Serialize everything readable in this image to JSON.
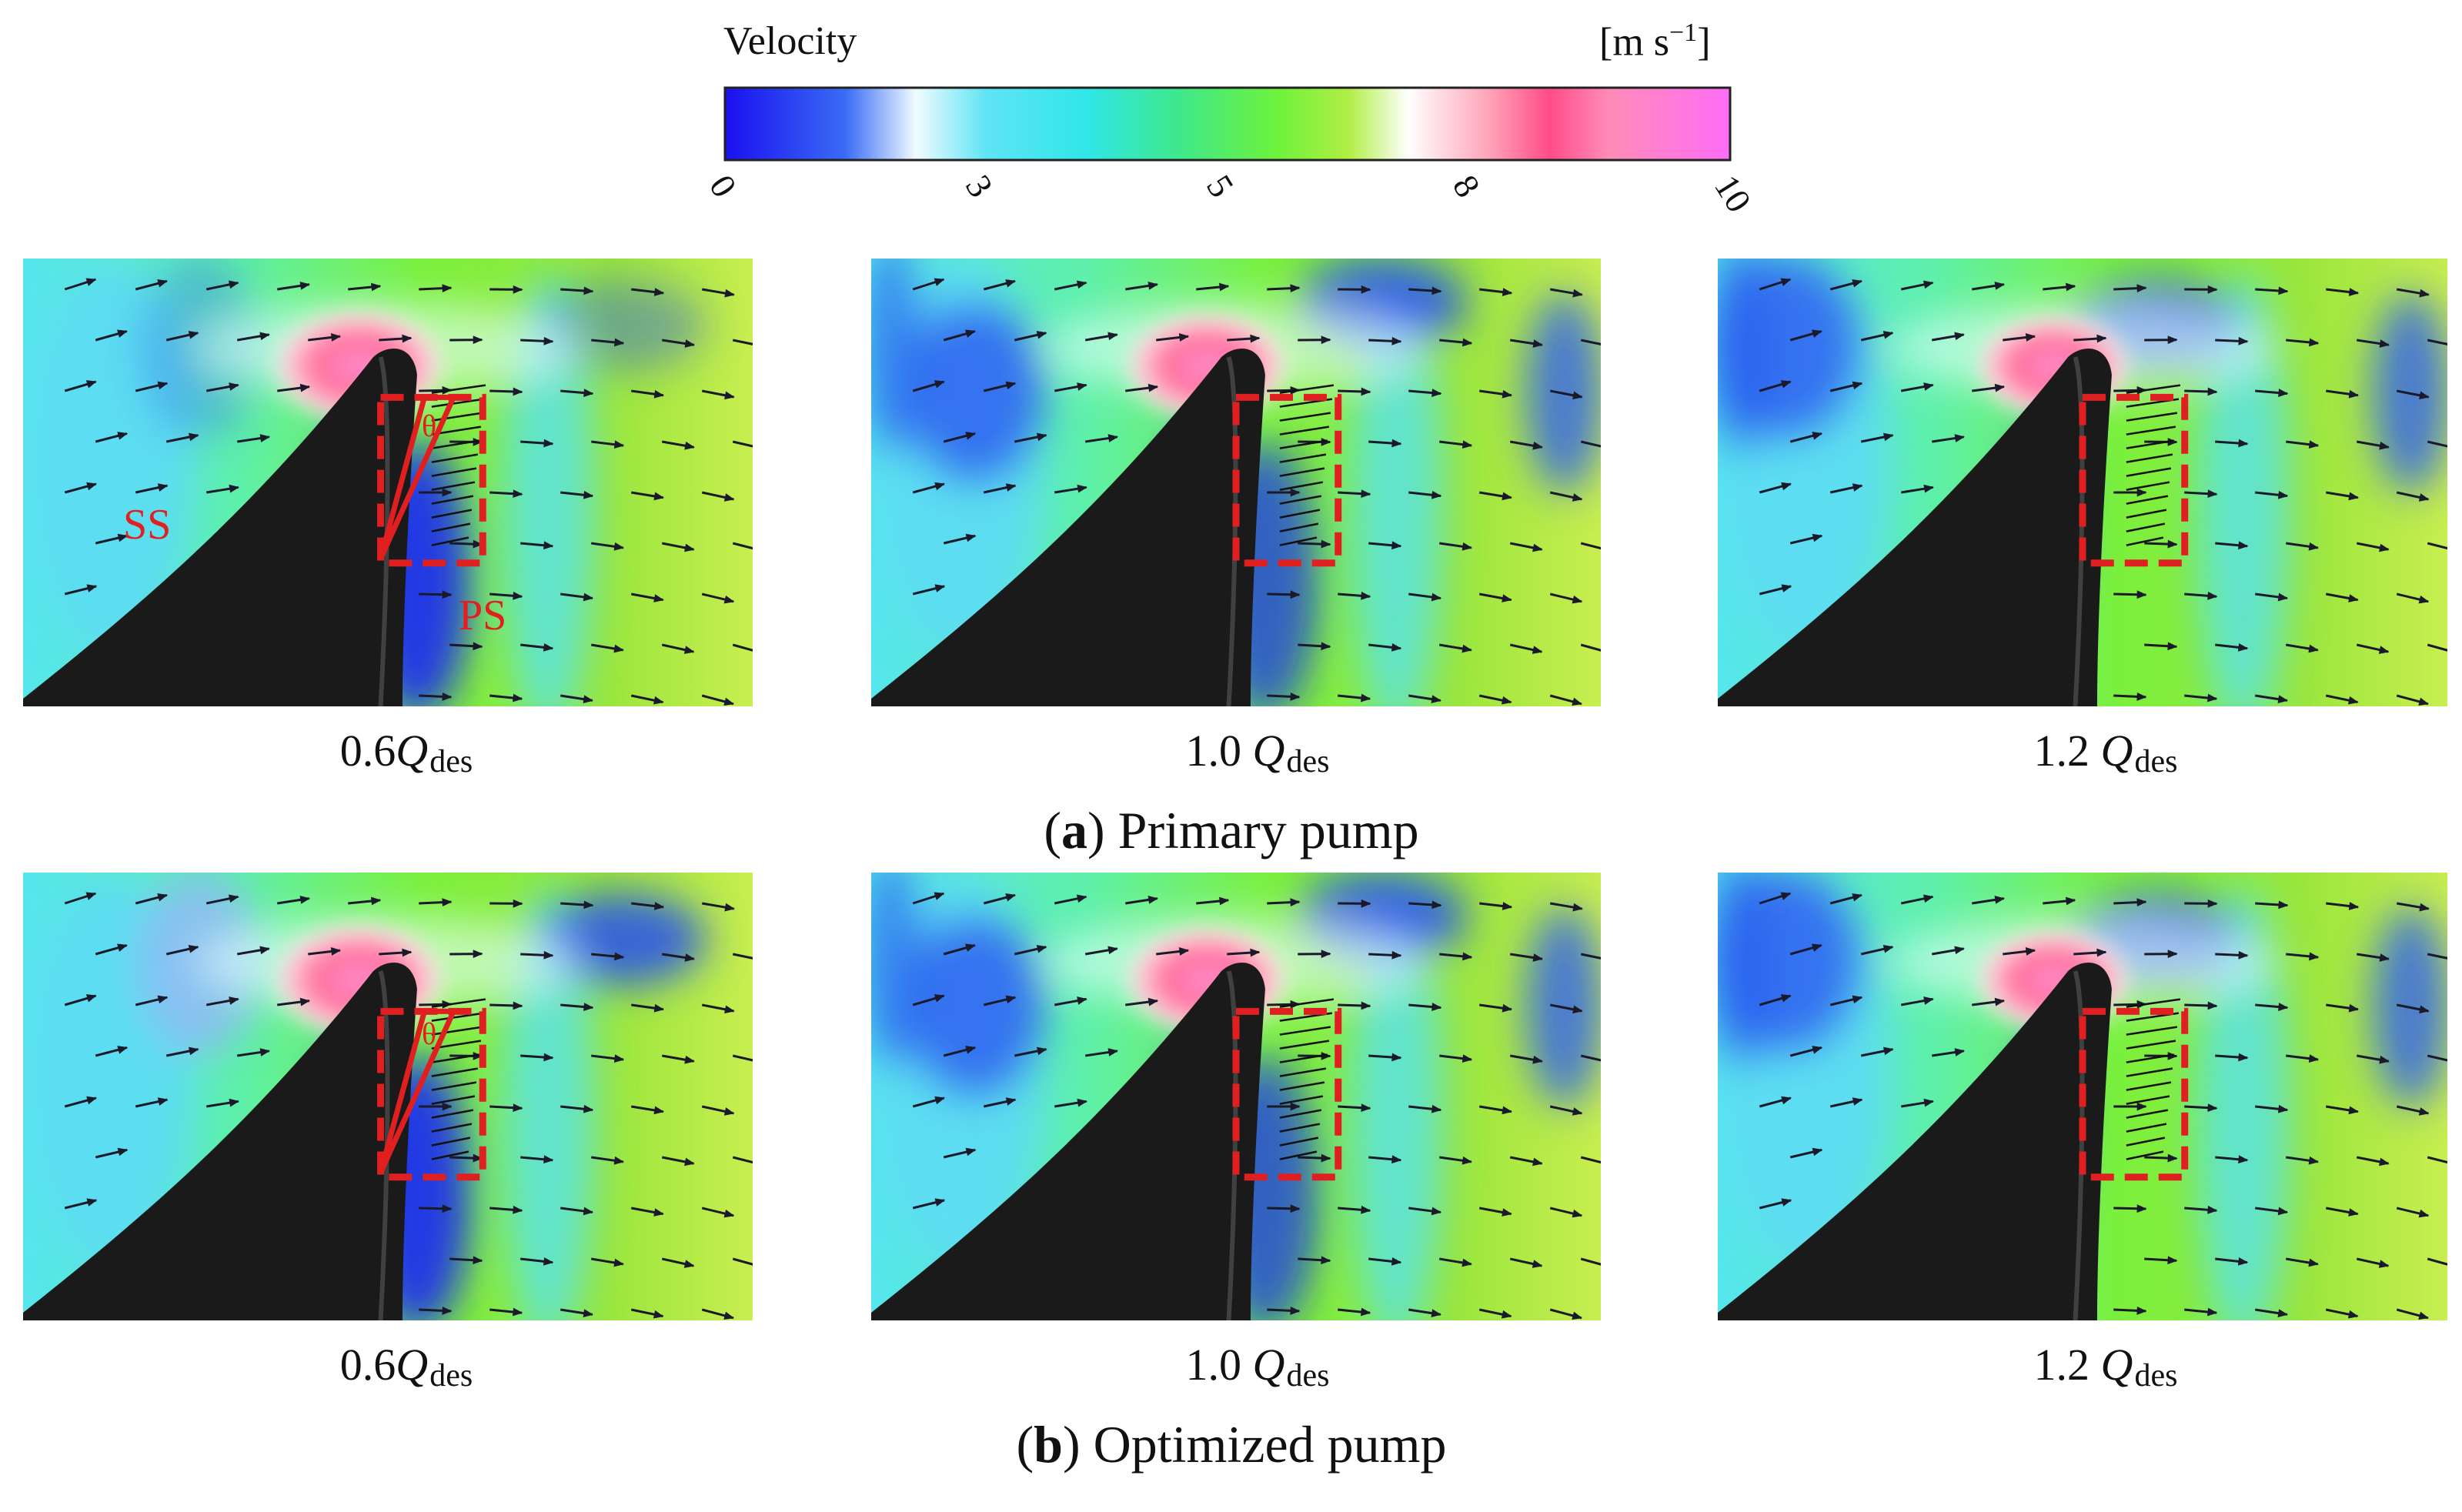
{
  "colorbar": {
    "title": "Velocity",
    "unit_prefix": "[m s",
    "unit_exp": "−1",
    "unit_suffix": "]",
    "ticks": [
      "0",
      "3",
      "5",
      "8",
      "10"
    ],
    "tick_values": [
      0,
      3,
      5,
      8,
      10
    ],
    "range": [
      0,
      10
    ],
    "colors": [
      "#1a10f0",
      "#2a5cf5",
      "#7fe6f5",
      "#30e6ee",
      "#3ee890",
      "#6ef23c",
      "#a8f03c",
      "#ffffff",
      "#ff9ab0",
      "#ff4a8a",
      "#ff60c8",
      "#ff70ff"
    ]
  },
  "rows": [
    {
      "caption_letter": "a",
      "caption_text": "Primary pump",
      "panels": [
        {
          "q_value": "0.6",
          "q_symbol": "Q",
          "q_sub": "des",
          "annotations": [
            "SS",
            "PS",
            "θ"
          ]
        },
        {
          "q_value": "1.0 ",
          "q_symbol": "Q",
          "q_sub": "des"
        },
        {
          "q_value": "1.2 ",
          "q_symbol": "Q",
          "q_sub": "des"
        }
      ]
    },
    {
      "caption_letter": "b",
      "caption_text": "Optimized pump",
      "panels": [
        {
          "q_value": "0.6",
          "q_symbol": "Q",
          "q_sub": "des",
          "annotations": [
            "θ"
          ]
        },
        {
          "q_value": "1.0 ",
          "q_symbol": "Q",
          "q_sub": "des"
        },
        {
          "q_value": "1.2 ",
          "q_symbol": "Q",
          "q_sub": "des"
        }
      ]
    }
  ],
  "style": {
    "annotation_color": "#e02020",
    "blade_color": "#1a1a1a",
    "arrow_color": "#1a1a2a"
  }
}
